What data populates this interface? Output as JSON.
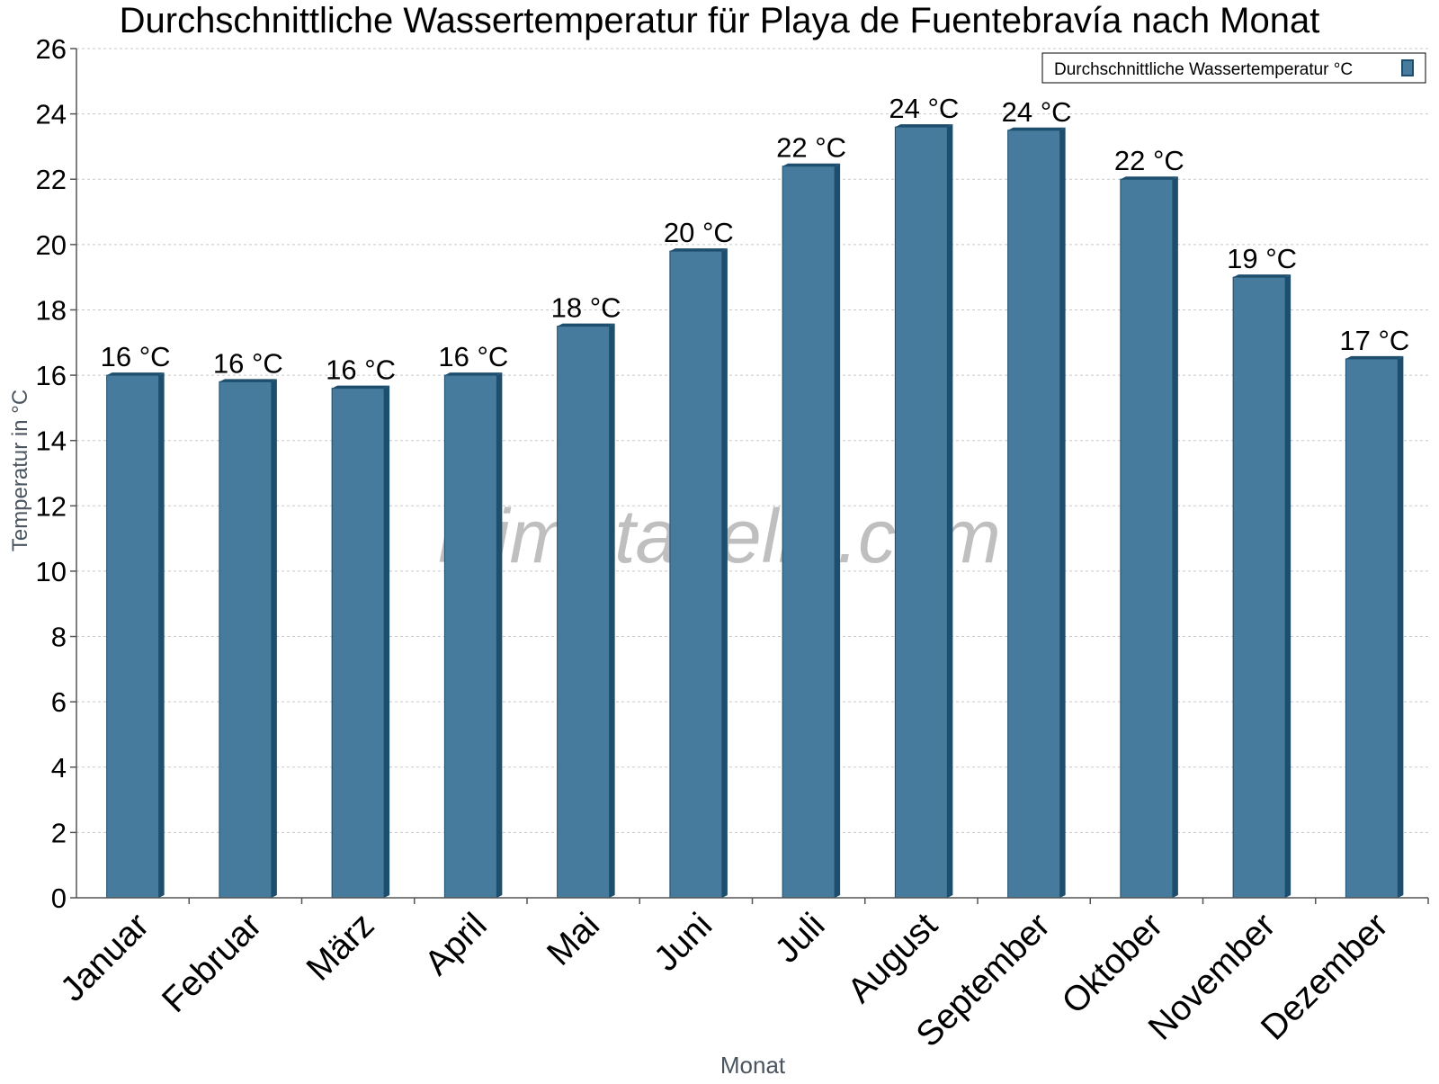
{
  "chart_data": {
    "type": "bar",
    "title": "Durchschnittliche Wassertemperatur für Playa de Fuentebravía nach Monat",
    "xlabel": "Monat",
    "ylabel": "Temperatur in °C",
    "categories": [
      "Januar",
      "Februar",
      "März",
      "April",
      "Mai",
      "Juni",
      "Juli",
      "August",
      "September",
      "Oktober",
      "November",
      "Dezember"
    ],
    "series": [
      {
        "name": "Durchschnittliche Wassertemperatur °C",
        "values": [
          16.0,
          15.8,
          15.6,
          16.0,
          17.5,
          19.8,
          22.4,
          23.6,
          23.5,
          22.0,
          19.0,
          16.5
        ],
        "labels": [
          "16 °C",
          "16 °C",
          "16 °C",
          "16 °C",
          "18 °C",
          "20 °C",
          "22 °C",
          "24 °C",
          "24 °C",
          "22 °C",
          "19 °C",
          "17 °C"
        ],
        "color": "#467b9d"
      }
    ],
    "ylim": [
      0,
      26
    ],
    "yticks": [
      0,
      2,
      4,
      6,
      8,
      10,
      12,
      14,
      16,
      18,
      20,
      22,
      24,
      26
    ],
    "grid": true,
    "legend_position": "top-right"
  },
  "watermark": "klimatabelle.com",
  "colors": {
    "bar_face": "#467b9d",
    "bar_side": "#1e4e6e",
    "grid": "#c8c8c8",
    "axis": "#555555",
    "axis_title": "#4a5560"
  }
}
